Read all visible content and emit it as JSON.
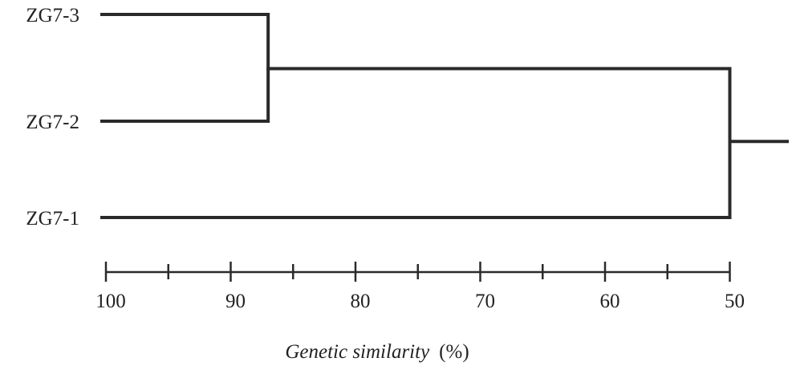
{
  "leaves": [
    {
      "id": "zg7-3",
      "label": "ZG7-3"
    },
    {
      "id": "zg7-2",
      "label": "ZG7-2"
    },
    {
      "id": "zg7-1",
      "label": "ZG7-1"
    }
  ],
  "merges": [
    {
      "members": [
        "ZG7-3",
        "ZG7-2"
      ],
      "similarity": 87
    },
    {
      "members": [
        "ZG7-3",
        "ZG7-2",
        "ZG7-1"
      ],
      "similarity": 50
    }
  ],
  "axis": {
    "title": "Genetic similarity",
    "unit": "(%)",
    "min": 45,
    "max": 100,
    "tick_labels": [
      "100",
      "90",
      "80",
      "70",
      "60",
      "50"
    ],
    "major_ticks": [
      100,
      90,
      80,
      70,
      60,
      50
    ],
    "minor_ticks": [
      95,
      85,
      75,
      65,
      55
    ]
  },
  "colors": {
    "line": "#2a2a2a",
    "text": "#222222",
    "background": "#ffffff"
  }
}
